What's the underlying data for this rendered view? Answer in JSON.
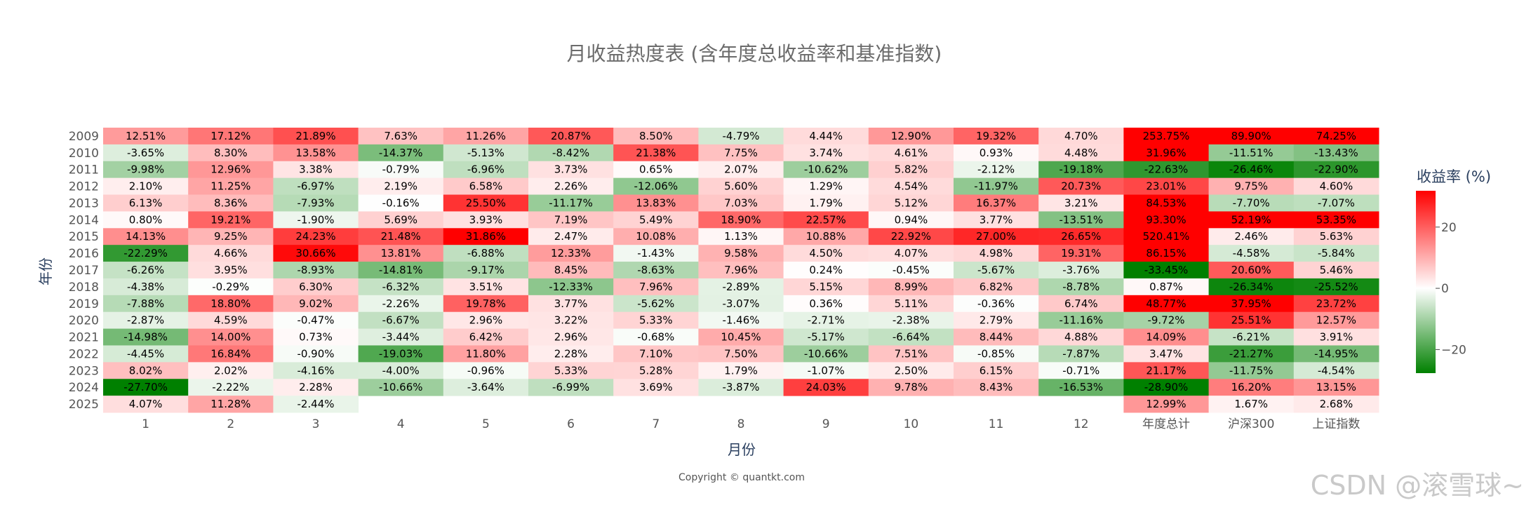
{
  "chart_data": {
    "type": "heatmap",
    "title": "月收益热度表 (含年度总收益率和基准指数)",
    "xlabel": "月份",
    "ylabel": "年份",
    "colorbar_title": "收益率 (%)",
    "colorbar_ticks": [
      "20",
      "0",
      "−20"
    ],
    "colorscale": [
      "#008000",
      "#ffffff",
      "#ff0000"
    ],
    "color_range": [
      -27.7,
      31.86
    ],
    "x_categories": [
      "1",
      "2",
      "3",
      "4",
      "5",
      "6",
      "7",
      "8",
      "9",
      "10",
      "11",
      "12",
      "年度总计",
      "沪深300",
      "上证指数"
    ],
    "y_categories": [
      "2009",
      "2010",
      "2011",
      "2012",
      "2013",
      "2014",
      "2015",
      "2016",
      "2017",
      "2018",
      "2019",
      "2020",
      "2021",
      "2022",
      "2023",
      "2024",
      "2025"
    ],
    "values": [
      [
        12.51,
        17.12,
        21.89,
        7.63,
        11.26,
        20.87,
        8.5,
        -4.79,
        4.44,
        12.9,
        19.32,
        4.7,
        253.75,
        89.9,
        74.25
      ],
      [
        -3.65,
        8.3,
        13.58,
        -14.37,
        -5.13,
        -8.42,
        21.38,
        7.75,
        3.74,
        4.61,
        0.93,
        4.48,
        31.96,
        -11.51,
        -13.43
      ],
      [
        -9.98,
        12.96,
        3.38,
        -0.79,
        -6.96,
        3.73,
        0.65,
        2.07,
        -10.62,
        5.82,
        -2.12,
        -19.18,
        -22.63,
        -26.46,
        -22.9
      ],
      [
        2.1,
        11.25,
        -6.97,
        2.19,
        6.58,
        2.26,
        -12.06,
        5.6,
        1.29,
        4.54,
        -11.97,
        20.73,
        23.01,
        9.75,
        4.6
      ],
      [
        6.13,
        8.36,
        -7.93,
        -0.16,
        25.5,
        -11.17,
        13.83,
        7.03,
        1.79,
        5.12,
        16.37,
        3.21,
        84.53,
        -7.7,
        -7.07
      ],
      [
        0.8,
        19.21,
        -1.9,
        5.69,
        3.93,
        7.19,
        5.49,
        18.9,
        22.57,
        0.94,
        3.77,
        -13.51,
        93.3,
        52.19,
        53.35
      ],
      [
        14.13,
        9.25,
        24.23,
        21.48,
        31.86,
        2.47,
        10.08,
        1.13,
        10.88,
        22.92,
        27.0,
        26.65,
        520.41,
        2.46,
        5.63
      ],
      [
        -22.29,
        4.66,
        30.66,
        13.81,
        -6.88,
        12.33,
        -1.43,
        9.58,
        4.5,
        4.07,
        4.98,
        19.31,
        86.15,
        -4.58,
        -5.84
      ],
      [
        -6.26,
        3.95,
        -8.93,
        -14.81,
        -9.17,
        8.45,
        -8.63,
        7.96,
        0.24,
        -0.45,
        -5.67,
        -3.76,
        -33.45,
        20.6,
        5.46
      ],
      [
        -4.38,
        -0.29,
        6.3,
        -6.32,
        3.51,
        -12.33,
        7.96,
        -2.89,
        5.15,
        8.99,
        6.82,
        -8.78,
        0.87,
        -26.34,
        -25.52
      ],
      [
        -7.88,
        18.8,
        9.02,
        -2.26,
        19.78,
        3.77,
        -5.62,
        -3.07,
        0.36,
        5.11,
        -0.36,
        6.74,
        48.77,
        37.95,
        23.72
      ],
      [
        -2.87,
        4.59,
        -0.47,
        -6.67,
        2.96,
        3.22,
        5.33,
        -1.46,
        -2.71,
        -2.38,
        2.79,
        -11.16,
        -9.72,
        25.51,
        12.57
      ],
      [
        -14.98,
        14.0,
        0.73,
        -3.44,
        6.42,
        2.96,
        -0.68,
        10.45,
        -5.17,
        -6.64,
        8.44,
        4.88,
        14.09,
        -6.21,
        3.91
      ],
      [
        -4.45,
        16.84,
        -0.9,
        -19.03,
        11.8,
        2.28,
        7.1,
        7.5,
        -10.66,
        7.51,
        -0.85,
        -7.87,
        3.47,
        -21.27,
        -14.95
      ],
      [
        8.02,
        2.02,
        -4.16,
        -4.0,
        -0.96,
        5.33,
        5.28,
        1.79,
        -1.07,
        2.5,
        6.15,
        -0.71,
        21.17,
        -11.75,
        -4.54
      ],
      [
        -27.7,
        -2.22,
        2.28,
        -10.66,
        -3.64,
        -6.99,
        3.69,
        -3.87,
        24.03,
        9.78,
        8.43,
        -16.53,
        -28.9,
        16.2,
        13.15
      ],
      [
        4.07,
        11.28,
        -2.44,
        null,
        null,
        null,
        null,
        null,
        null,
        null,
        null,
        null,
        12.99,
        1.67,
        2.68
      ]
    ]
  },
  "footer": {
    "copyright": "Copyright © quantkt.com"
  },
  "watermark": "CSDN @滚雪球~"
}
